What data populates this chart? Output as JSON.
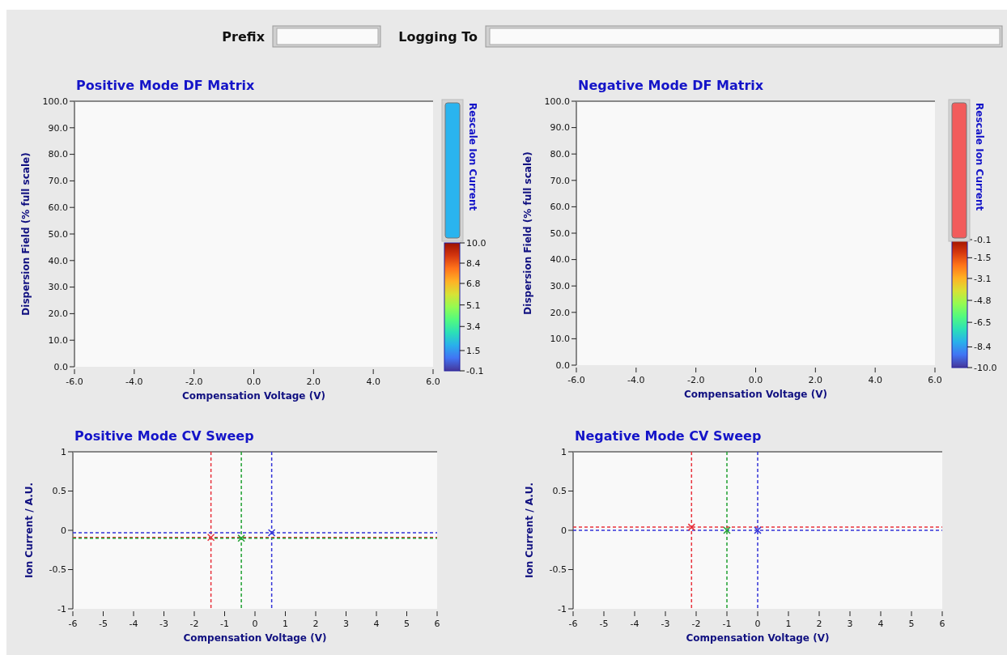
{
  "chart_data": [
    {
      "type": "other",
      "annotations": [
        "Prefix",
        "Logging To"
      ]
    },
    {
      "type": "heatmap",
      "title": "Positive Mode DF Matrix",
      "xlabel": "Compensation Voltage (V)",
      "ylabel": "Dispersion Field (% full scale)",
      "xlim": [
        -6,
        6
      ],
      "ylim": [
        0,
        100
      ],
      "xticks": [
        {
          "value": -6,
          "label": "-6.0"
        },
        {
          "value": -4,
          "label": "-4.0"
        },
        {
          "value": -2,
          "label": "-2.0"
        },
        {
          "value": 0,
          "label": "0.0"
        },
        {
          "value": 2,
          "label": "2.0"
        },
        {
          "value": 4,
          "label": "4.0"
        },
        {
          "value": 6,
          "label": "6.0"
        }
      ],
      "yticks": [
        {
          "value": 0,
          "label": "0.0"
        },
        {
          "value": 10,
          "label": "10.0"
        },
        {
          "value": 20,
          "label": "20.0"
        },
        {
          "value": 30,
          "label": "30.0"
        },
        {
          "value": 40,
          "label": "40.0"
        },
        {
          "value": 50,
          "label": "50.0"
        },
        {
          "value": 60,
          "label": "60.0"
        },
        {
          "value": 70,
          "label": "70.0"
        },
        {
          "value": 80,
          "label": "80.0"
        },
        {
          "value": 90,
          "label": "90.0"
        },
        {
          "value": 100,
          "label": "100.0"
        }
      ],
      "clim": [
        -0.1,
        10
      ],
      "cticks": [
        -0.1,
        1.5,
        3.4,
        5.1,
        6.8,
        8.4,
        {
          "value": 10,
          "label": "10.0"
        }
      ],
      "annotations": [
        "Rescale Ion Current"
      ],
      "grid": false
    },
    {
      "type": "heatmap",
      "title": "Negative Mode DF Matrix",
      "xlabel": "Compensation Voltage (V)",
      "ylabel": "Dispersion Field (% full scale)",
      "xlim": [
        -6,
        6
      ],
      "ylim": [
        0,
        100
      ],
      "xticks": [
        {
          "value": -6,
          "label": "-6.0"
        },
        {
          "value": -4,
          "label": "-4.0"
        },
        {
          "value": -2,
          "label": "-2.0"
        },
        {
          "value": 0,
          "label": "0.0"
        },
        {
          "value": 2,
          "label": "2.0"
        },
        {
          "value": 4,
          "label": "4.0"
        },
        {
          "value": 6,
          "label": "6.0"
        }
      ],
      "yticks": [
        {
          "value": 0,
          "label": "0.0"
        },
        {
          "value": 10,
          "label": "10.0"
        },
        {
          "value": 20,
          "label": "20.0"
        },
        {
          "value": 30,
          "label": "30.0"
        },
        {
          "value": 40,
          "label": "40.0"
        },
        {
          "value": 50,
          "label": "50.0"
        },
        {
          "value": 60,
          "label": "60.0"
        },
        {
          "value": 70,
          "label": "70.0"
        },
        {
          "value": 80,
          "label": "80.0"
        },
        {
          "value": 90,
          "label": "90.0"
        },
        {
          "value": 100,
          "label": "100.0"
        }
      ],
      "clim": [
        -10,
        -0.1
      ],
      "cticks": [
        {
          "value": -10,
          "label": "-10.0"
        },
        -8.4,
        -6.5,
        -4.8,
        -3.1,
        -1.5,
        -0.1
      ],
      "annotations": [
        "Rescale Ion Current"
      ],
      "grid": false
    },
    {
      "type": "scatter",
      "title": "Positive Mode CV Sweep",
      "xlabel": "Compensation Voltage (V)",
      "ylabel": "Ion Current / A.U.",
      "xlim": [
        -6,
        6
      ],
      "ylim": [
        -1,
        1
      ],
      "xticks": [
        -6,
        -5,
        -4,
        -3,
        -2,
        -1,
        0,
        1,
        2,
        3,
        4,
        5,
        6
      ],
      "yticks": [
        -1,
        -0.5,
        0,
        0.5,
        1
      ],
      "marker": "cross",
      "grid": false,
      "series": [
        {
          "color": "#e8323c",
          "x": [
            -1.45
          ],
          "values": [
            -0.09
          ]
        },
        {
          "color": "#1fa030",
          "x": [
            -0.45
          ],
          "values": [
            -0.1
          ]
        },
        {
          "color": "#3232d8",
          "x": [
            0.55
          ],
          "values": [
            -0.03
          ]
        }
      ],
      "ref_lines": [
        {
          "axis": "x",
          "value": -1.45,
          "color": "#e8323c",
          "line_style": "dashed"
        },
        {
          "axis": "x",
          "value": -0.45,
          "color": "#1fa030",
          "line_style": "dashed"
        },
        {
          "axis": "x",
          "value": 0.55,
          "color": "#3232d8",
          "line_style": "dashed"
        },
        {
          "axis": "y",
          "value": -0.03,
          "color": "#3232d8",
          "line_style": "dashed"
        },
        {
          "axis": "y",
          "value": -0.09,
          "color": "#e8323c",
          "line_style": "dashed"
        },
        {
          "axis": "y",
          "value": -0.1,
          "color": "#1fa030",
          "line_style": "dashed"
        }
      ]
    },
    {
      "type": "scatter",
      "title": "Negative Mode CV Sweep",
      "xlabel": "Compensation Voltage (V)",
      "ylabel": "Ion Current / A.U.",
      "xlim": [
        -6,
        6
      ],
      "ylim": [
        -1,
        1
      ],
      "xticks": [
        -6,
        -5,
        -4,
        -3,
        -2,
        -1,
        0,
        1,
        2,
        3,
        4,
        5,
        6
      ],
      "yticks": [
        -1,
        -0.5,
        0,
        0.5,
        1
      ],
      "marker": "cross",
      "grid": false,
      "series": [
        {
          "color": "#e8323c",
          "x": [
            -2.15
          ],
          "values": [
            0.04
          ]
        },
        {
          "color": "#1fa030",
          "x": [
            -1.0
          ],
          "values": [
            0.0
          ]
        },
        {
          "color": "#3232d8",
          "x": [
            0.0
          ],
          "values": [
            0.0
          ]
        }
      ],
      "ref_lines": [
        {
          "axis": "x",
          "value": -2.15,
          "color": "#e8323c",
          "line_style": "dashed"
        },
        {
          "axis": "x",
          "value": -1.0,
          "color": "#1fa030",
          "line_style": "dashed"
        },
        {
          "axis": "x",
          "value": 0.0,
          "color": "#3232d8",
          "line_style": "dashed"
        },
        {
          "axis": "y",
          "value": 0.04,
          "color": "#e8323c",
          "line_style": "dashed"
        },
        {
          "axis": "y",
          "value": 0.0,
          "color": "#3232d8",
          "line_style": "dashed"
        }
      ]
    }
  ]
}
